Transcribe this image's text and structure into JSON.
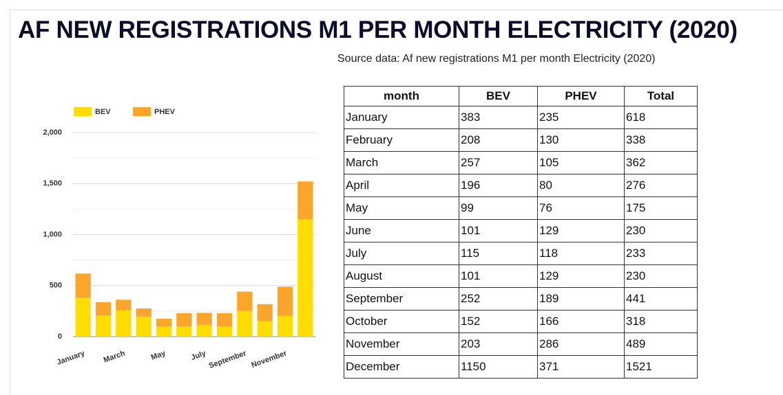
{
  "title": "AF NEW REGISTRATIONS M1 PER MONTH ELECTRICITY (2020)",
  "source": "Source data: Af new registrations M1 per month Electricity (2020)",
  "chart_data": {
    "type": "stacked_bar",
    "categories": [
      "January",
      null,
      "March",
      null,
      "May",
      null,
      "July",
      null,
      "September",
      null,
      "November",
      null
    ],
    "series": [
      {
        "name": "BEV",
        "color": "#ffdd00",
        "values": [
          383,
          208,
          257,
          196,
          99,
          101,
          115,
          101,
          252,
          152,
          203,
          1150
        ]
      },
      {
        "name": "PHEV",
        "color": "#fba62a",
        "values": [
          235,
          130,
          105,
          80,
          76,
          129,
          118,
          129,
          189,
          166,
          286,
          371
        ]
      }
    ],
    "ylim": [
      0,
      2000
    ],
    "yticks": [
      0,
      500,
      {
        "value": 1000,
        "label": "1,000"
      },
      {
        "value": 1500,
        "label": "1,500"
      },
      {
        "value": 2000,
        "label": "2,000"
      }
    ],
    "minor_yticks": [
      250,
      750,
      1250,
      1750
    ],
    "grid": true,
    "legend": "top"
  },
  "table": {
    "header": [
      "month",
      "BEV",
      "PHEV",
      "Total"
    ],
    "rows": [
      [
        "January",
        383,
        235,
        618
      ],
      [
        "February",
        208,
        130,
        338
      ],
      [
        "March",
        257,
        105,
        362
      ],
      [
        "April",
        196,
        80,
        276
      ],
      [
        "May",
        99,
        76,
        175
      ],
      [
        "June",
        101,
        129,
        230
      ],
      [
        "July",
        115,
        118,
        233
      ],
      [
        "August",
        101,
        129,
        230
      ],
      [
        "September",
        252,
        189,
        441
      ],
      [
        "October",
        152,
        166,
        318
      ],
      [
        "November",
        203,
        286,
        489
      ],
      [
        "December",
        1150,
        371,
        1521
      ]
    ]
  }
}
